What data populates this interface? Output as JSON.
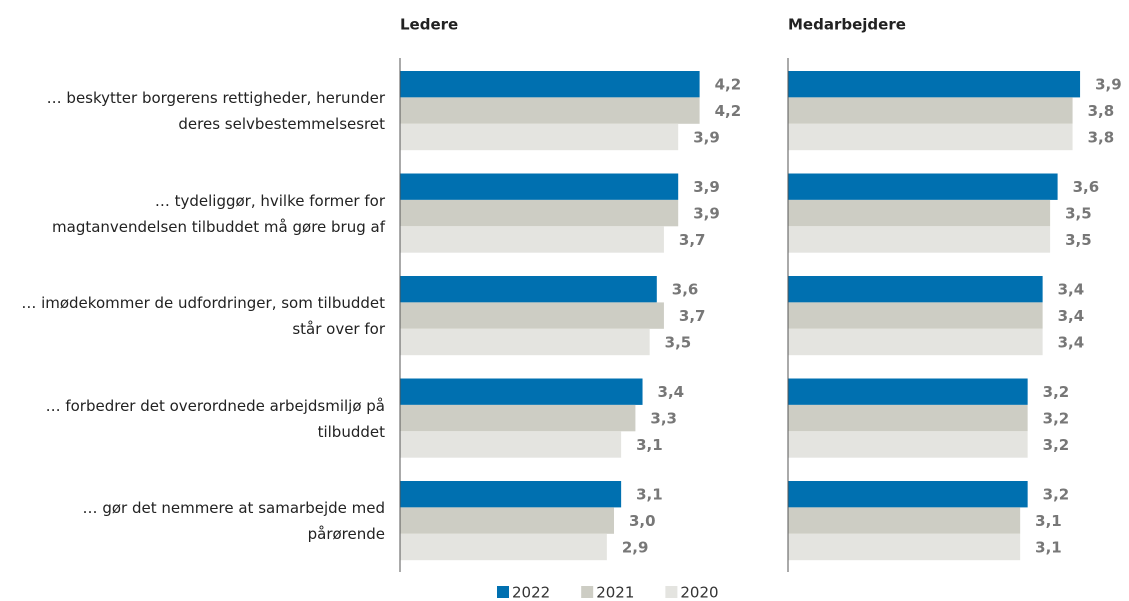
{
  "chart_data": [
    {
      "type": "barh",
      "title": "Ledere",
      "categories": [
        "… beskytter borgerens rettigheder, herunder deres selvbestemmelsesret",
        "… tydeliggør, hvilke former for magtanvendelsen tilbuddet må gøre brug af",
        "… imødekommer de udfordringer, som tilbuddet står over for",
        "… forbedrer det overordnede arbejdsmiljø på tilbuddet",
        "… gør det nemmere at samarbejde med pårørende"
      ],
      "xlim": [
        0,
        4.5
      ],
      "legend": "bottom",
      "series": [
        {
          "name": "2022",
          "color": "#0070b0",
          "values": [
            4.2,
            3.9,
            3.6,
            3.4,
            3.1
          ],
          "value_labels": [
            "4,2",
            "3,9",
            "3,6",
            "3,4",
            "3,1"
          ]
        },
        {
          "name": "2021",
          "color": "#cdcdc4",
          "values": [
            4.2,
            3.9,
            3.7,
            3.3,
            3.0
          ],
          "value_labels": [
            "4,2",
            "3,9",
            "3,7",
            "3,3",
            "3,0"
          ]
        },
        {
          "name": "2020",
          "color": "#e4e4e0",
          "values": [
            3.9,
            3.7,
            3.5,
            3.1,
            2.9
          ],
          "value_labels": [
            "3,9",
            "3,7",
            "3,5",
            "3,1",
            "2,9"
          ]
        }
      ]
    },
    {
      "type": "barh",
      "title": "Medarbejdere",
      "xlim": [
        0,
        4.5
      ],
      "series": [
        {
          "color": "#0070b0",
          "values": [
            3.9,
            3.6,
            3.4,
            3.2,
            3.2
          ],
          "value_labels": [
            "3,9",
            "3,6",
            "3,4",
            "3,2",
            "3,2"
          ]
        },
        {
          "color": "#cdcdc4",
          "values": [
            3.8,
            3.5,
            3.4,
            3.2,
            3.1
          ],
          "value_labels": [
            "3,8",
            "3,5",
            "3,4",
            "3,2",
            "3,1"
          ]
        },
        {
          "color": "#e4e4e0",
          "values": [
            3.8,
            3.5,
            3.4,
            3.2,
            3.1
          ],
          "value_labels": [
            "3,8",
            "3,5",
            "3,4",
            "3,2",
            "3,1"
          ]
        }
      ]
    }
  ]
}
